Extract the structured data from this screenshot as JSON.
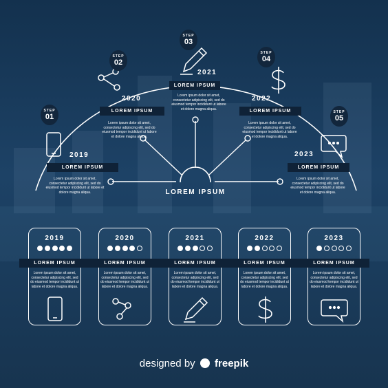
{
  "steps": [
    {
      "step": "STEP",
      "num": "01",
      "year": "2019",
      "label": "LOREM IPSUM",
      "text": "Lorem ipsum dolor sit amet, consectetur adipiscing elit, sed do eiusmod tempor incididunt ut labore et dolore magna aliqua.",
      "icon": "phone-icon"
    },
    {
      "step": "STEP",
      "num": "02",
      "year": "2020",
      "label": "LOREM IPSUM",
      "text": "Lorem ipsum dolor sit amet, consectetur adipiscing elit, sed do eiusmod tempor incididunt ut labore et dolore magna aliqua.",
      "icon": "share-icon"
    },
    {
      "step": "STEP",
      "num": "03",
      "year": "2021",
      "label": "LOREM IPSUM",
      "text": "Lorem ipsum dolor sit amet, consectetur adipiscing elit, sed do eiusmod tempor incididunt ut labore et dolore magna aliqua.",
      "icon": "pencil-icon"
    },
    {
      "step": "STEP",
      "num": "04",
      "year": "2022",
      "label": "LOREM IPSUM",
      "text": "Lorem ipsum dolor sit amet, consectetur adipiscing elit, sed do eiusmod tempor incididunt ut labore et dolore magna aliqua.",
      "icon": "dollar-icon"
    },
    {
      "step": "STEP",
      "num": "05",
      "year": "2023",
      "label": "LOREM IPSUM",
      "text": "Lorem ipsum dolor sit amet, consectetur adipiscing elit, sed do eiusmod tempor incididunt ut labore et dolore magna aliqua.",
      "icon": "chat-bubble-icon"
    }
  ],
  "center_label": "LOREM IPSUM",
  "cards": [
    {
      "year": "2019",
      "rating": 5,
      "label": "LOREM IPSUM",
      "text": "Lorem ipsum dolor sit amet, consectetur adipiscing elit, sed do eiusmod tempor incididunt ut labore et dolore magna aliqua.",
      "icon": "phone-icon"
    },
    {
      "year": "2020",
      "rating": 4,
      "label": "LOREM IPSUM",
      "text": "Lorem ipsum dolor sit amet, consectetur adipiscing elit, sed do eiusmod tempor incididunt ut labore et dolore magna aliqua.",
      "icon": "share-icon"
    },
    {
      "year": "2021",
      "rating": 3,
      "label": "LOREM IPSUM",
      "text": "Lorem ipsum dolor sit amet, consectetur adipiscing elit, sed do eiusmod tempor incididunt ut labore et dolore magna aliqua.",
      "icon": "pencil-icon"
    },
    {
      "year": "2022",
      "rating": 2,
      "label": "LOREM IPSUM",
      "text": "Lorem ipsum dolor sit amet, consectetur adipiscing elit, sed do eiusmod tempor incididunt ut labore et dolore magna aliqua.",
      "icon": "dollar-icon"
    },
    {
      "year": "2023",
      "rating": 1,
      "label": "LOREM IPSUM",
      "text": "Lorem ipsum dolor sit amet, consectetur adipiscing elit, sed do eiusmod tempor incididunt ut labore et dolore magna aliqua.",
      "icon": "chat-bubble-icon"
    }
  ],
  "footer": {
    "prefix": "designed by",
    "brand": "freepik"
  },
  "colors": {
    "background": "#1d4266",
    "label_bar": "#0f2237",
    "badge": "#12263c",
    "line": "#ffffff"
  }
}
